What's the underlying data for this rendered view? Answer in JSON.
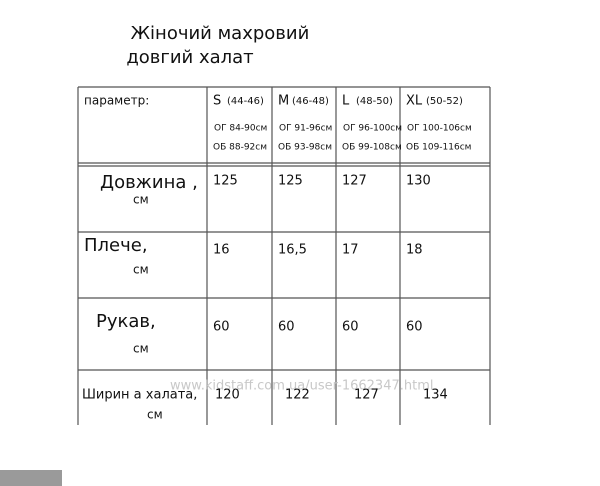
{
  "title": {
    "line1": "Жіночий махровий",
    "line2": "довгий халат"
  },
  "table": {
    "header": {
      "parameter": "параметр:",
      "sizes": [
        {
          "size": "S",
          "range": "(44-46)",
          "og": "ОГ 84-90см",
          "ob": "ОБ 88-92см"
        },
        {
          "size": "M",
          "range": "(46-48)",
          "og": "ОГ 91-96см",
          "ob": "ОБ 93-98см"
        },
        {
          "size": "L",
          "range": "(48-50)",
          "og": "ОГ 96-100см",
          "ob": "ОБ 99-108см"
        },
        {
          "size": "XL",
          "range": "(50-52)",
          "og": "ОГ 100-106см",
          "ob": "ОБ 109-116см"
        }
      ]
    },
    "rows": [
      {
        "label": "Довжина ,",
        "unit": "см",
        "values": [
          125,
          125,
          127,
          130
        ]
      },
      {
        "label": "Плече,",
        "unit": "см",
        "values": [
          16,
          "16,5",
          17,
          18
        ]
      },
      {
        "label": "Рукав,",
        "unit": "см",
        "values": [
          60,
          60,
          60,
          60
        ]
      },
      {
        "label": "Ширин а халата,",
        "unit": "см",
        "values": [
          120,
          122,
          127,
          134
        ]
      }
    ]
  },
  "watermark": "www.kidstaff.com.ua/user-1662347.html"
}
